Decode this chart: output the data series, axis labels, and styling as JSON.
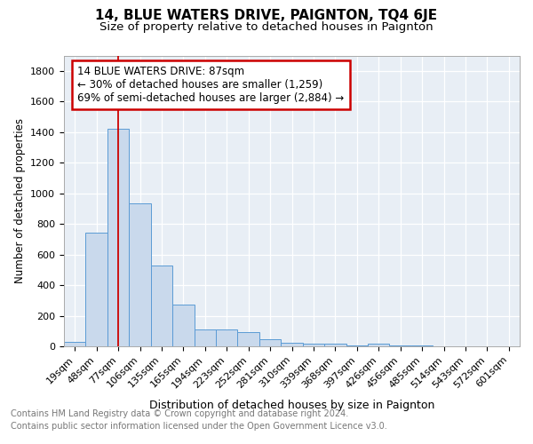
{
  "title": "14, BLUE WATERS DRIVE, PAIGNTON, TQ4 6JE",
  "subtitle": "Size of property relative to detached houses in Paignton",
  "xlabel": "Distribution of detached houses by size in Paignton",
  "ylabel": "Number of detached properties",
  "footnote1": "Contains HM Land Registry data © Crown copyright and database right 2024.",
  "footnote2": "Contains public sector information licensed under the Open Government Licence v3.0.",
  "bin_labels": [
    "19sqm",
    "48sqm",
    "77sqm",
    "106sqm",
    "135sqm",
    "165sqm",
    "194sqm",
    "223sqm",
    "252sqm",
    "281sqm",
    "310sqm",
    "339sqm",
    "368sqm",
    "397sqm",
    "426sqm",
    "456sqm",
    "485sqm",
    "514sqm",
    "543sqm",
    "572sqm",
    "601sqm"
  ],
  "bar_heights": [
    30,
    740,
    1420,
    935,
    530,
    270,
    110,
    110,
    90,
    45,
    25,
    15,
    15,
    5,
    15,
    5,
    5,
    0,
    0,
    0,
    0
  ],
  "bar_color": "#c9d9ec",
  "bar_edge_color": "#5b9bd5",
  "red_line_x": 2.0,
  "annotation_text": "14 BLUE WATERS DRIVE: 87sqm\n← 30% of detached houses are smaller (1,259)\n69% of semi-detached houses are larger (2,884) →",
  "annotation_box_color": "#cc0000",
  "ylim": [
    0,
    1900
  ],
  "yticks": [
    0,
    200,
    400,
    600,
    800,
    1000,
    1200,
    1400,
    1600,
    1800
  ],
  "bg_color": "#e8eef5",
  "grid_color": "#ffffff",
  "title_fontsize": 11,
  "subtitle_fontsize": 9.5,
  "tick_fontsize": 8,
  "ylabel_fontsize": 8.5,
  "xlabel_fontsize": 9,
  "annot_fontsize": 8.5,
  "footnote_fontsize": 7,
  "footnote_color": "#777777"
}
